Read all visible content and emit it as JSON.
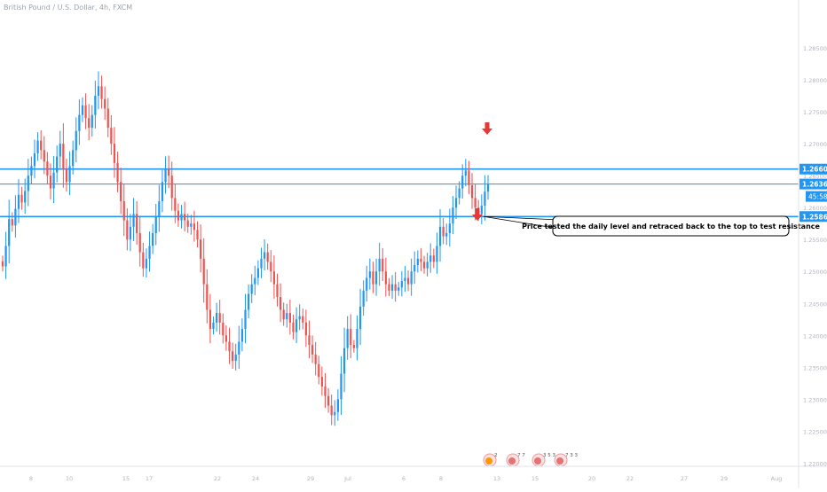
{
  "header": {
    "symbol_title": "British Pound / U.S. Dollar, 4h, FXCM"
  },
  "chart_data": {
    "type": "candlestick",
    "title": "British Pound / U.S. Dollar, 4h, FXCM",
    "ylim": [
      1.2195,
      1.2925
    ],
    "y_ticks": [
      "1.28500",
      "1.28000",
      "1.27500",
      "1.27000",
      "1.26500",
      "1.26000",
      "1.25500",
      "1.25000",
      "1.24500",
      "1.24000",
      "1.23500",
      "1.23000",
      "1.22500",
      "1.22000"
    ],
    "x_ticks": [
      "8",
      "10",
      "15",
      "17",
      "22",
      "24",
      "29",
      "Jul",
      "6",
      "8",
      "13",
      "15",
      "20",
      "22",
      "27",
      "29",
      "Aug"
    ],
    "colors": {
      "up": "#2196f3",
      "down": "#ef5350",
      "level": "#2196f3",
      "arrow": "#e53935"
    },
    "levels": [
      {
        "label": "1.26603",
        "value": 1.26603,
        "style": "resistance"
      },
      {
        "label": "1.26369",
        "value": 1.26369,
        "style": "current"
      },
      {
        "label": "1.25860",
        "value": 1.2586,
        "style": "support"
      }
    ],
    "countdown": "45:58",
    "annotation": "Price tested the daily level and retraced back to the top to test resistance",
    "events": [
      {
        "label": "2"
      },
      {
        "label": "7 7"
      },
      {
        "label": "3 5 3"
      },
      {
        "label": "7 3 3"
      }
    ],
    "candles_close": [
      1.2508,
      1.254,
      1.2582,
      1.2572,
      1.2598,
      1.262,
      1.2608,
      1.2626,
      1.265,
      1.2665,
      1.2685,
      1.2705,
      1.269,
      1.2672,
      1.265,
      1.263,
      1.2655,
      1.268,
      1.27,
      1.266,
      1.264,
      1.2665,
      1.269,
      1.272,
      1.2745,
      1.276,
      1.274,
      1.2725,
      1.2745,
      1.2775,
      1.279,
      1.277,
      1.2755,
      1.2725,
      1.27,
      1.267,
      1.264,
      1.261,
      1.258,
      1.255,
      1.257,
      1.259,
      1.256,
      1.253,
      1.2505,
      1.252,
      1.254,
      1.256,
      1.2585,
      1.261,
      1.264,
      1.266,
      1.265,
      1.2615,
      1.2595,
      1.258,
      1.259,
      1.258,
      1.257,
      1.2575,
      1.2565,
      1.255,
      1.252,
      1.248,
      1.244,
      1.241,
      1.242,
      1.2435,
      1.242,
      1.24,
      1.239,
      1.2375,
      1.236,
      1.237,
      1.239,
      1.241,
      1.244,
      1.2465,
      1.248,
      1.249,
      1.2505,
      1.252,
      1.253,
      1.2515,
      1.25,
      1.248,
      1.246,
      1.244,
      1.2425,
      1.2435,
      1.242,
      1.2405,
      1.2425,
      1.243,
      1.242,
      1.24,
      1.2385,
      1.237,
      1.2355,
      1.2335,
      1.232,
      1.2305,
      1.229,
      1.2275,
      1.228,
      1.23,
      1.234,
      1.238,
      1.241,
      1.2385,
      1.238,
      1.241,
      1.2445,
      1.247,
      1.249,
      1.25,
      1.248,
      1.25,
      1.252,
      1.25,
      1.248,
      1.247,
      1.248,
      1.247,
      1.2475,
      1.2485,
      1.249,
      1.248,
      1.25,
      1.251,
      1.252,
      1.2515,
      1.2505,
      1.2515,
      1.2525,
      1.2515,
      1.254,
      1.257,
      1.2555,
      1.256,
      1.2575,
      1.26,
      1.2615,
      1.263,
      1.265,
      1.2658,
      1.2635,
      1.2615,
      1.26,
      1.259,
      1.2603,
      1.2625,
      1.2637
    ]
  }
}
